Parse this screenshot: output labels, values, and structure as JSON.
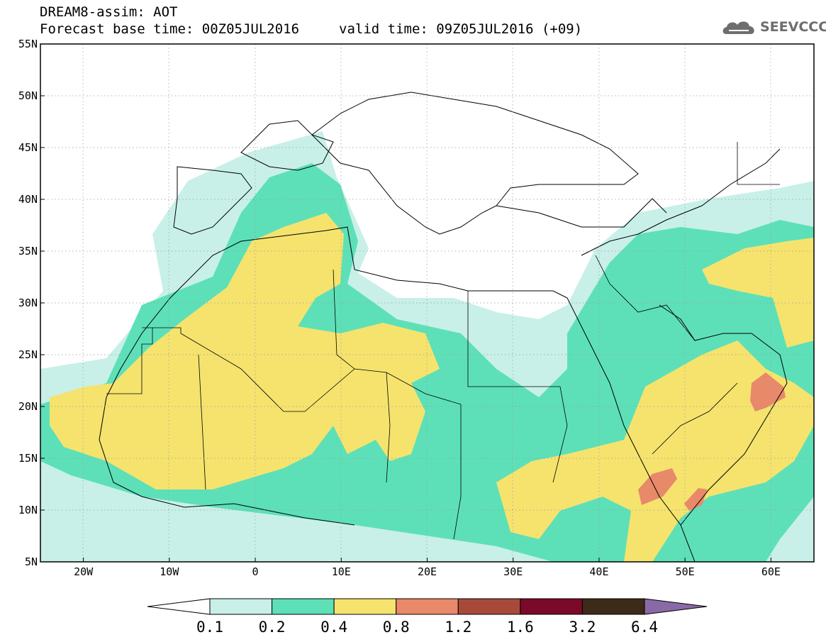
{
  "header": {
    "title": "DREAM8-assim: AOT",
    "base_time": "Forecast base time: 00Z05JUL2016",
    "valid_time": "valid time: 09Z05JUL2016 (+09)"
  },
  "logo": {
    "text": "SEEVCCC",
    "icon": "cloud-icon"
  },
  "axes": {
    "lat_labels": [
      "55N",
      "50N",
      "45N",
      "40N",
      "35N",
      "30N",
      "25N",
      "20N",
      "15N",
      "10N",
      "5N"
    ],
    "lon_labels": [
      "20W",
      "10W",
      "0",
      "10E",
      "20E",
      "30E",
      "40E",
      "50E",
      "60E"
    ]
  },
  "colorbar": {
    "labels": [
      "0.1",
      "0.2",
      "0.4",
      "0.8",
      "1.2",
      "1.6",
      "3.2",
      "6.4"
    ],
    "colors": [
      "#ffffff",
      "#c8f0e8",
      "#5de0b8",
      "#f5e36e",
      "#e8896a",
      "#a84a3a",
      "#7a0a2a",
      "#3e2a18",
      "#8a6aa6"
    ]
  },
  "map": {
    "type": "aerosol-optical-thickness-forecast",
    "extent": {
      "lon_min": -25,
      "lon_max": 65,
      "lat_min": 5,
      "lat_max": 55
    },
    "field_colors": {
      "light": "#c8f0e8",
      "teal": "#5de0b8",
      "yellow": "#f5e36e",
      "orange": "#e8896a"
    },
    "grid": "dotted"
  }
}
